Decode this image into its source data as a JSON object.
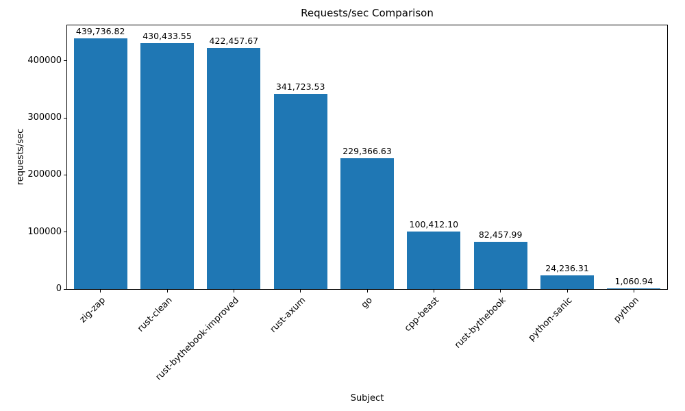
{
  "chart_data": {
    "type": "bar",
    "title": "Requests/sec Comparison",
    "xlabel": "Subject",
    "ylabel": "requests/sec",
    "categories": [
      "zig-zap",
      "rust-clean",
      "rust-bythebook-improved",
      "rust-axum",
      "go",
      "cpp-beast",
      "rust-bythebook",
      "python-sanic",
      "python"
    ],
    "values": [
      439736.82,
      430433.55,
      422457.67,
      341723.53,
      229366.63,
      100412.1,
      82457.99,
      24236.31,
      1060.94
    ],
    "value_labels": [
      "439,736.82",
      "430,433.55",
      "422,457.67",
      "341,723.53",
      "229,366.63",
      "100,412.10",
      "82,457.99",
      "24,236.31",
      "1,060.94"
    ],
    "ylim": [
      0,
      462000
    ],
    "yticks": [
      0,
      100000,
      200000,
      300000,
      400000
    ],
    "bar_color": "#1f77b4",
    "grid": false,
    "legend": "none"
  }
}
